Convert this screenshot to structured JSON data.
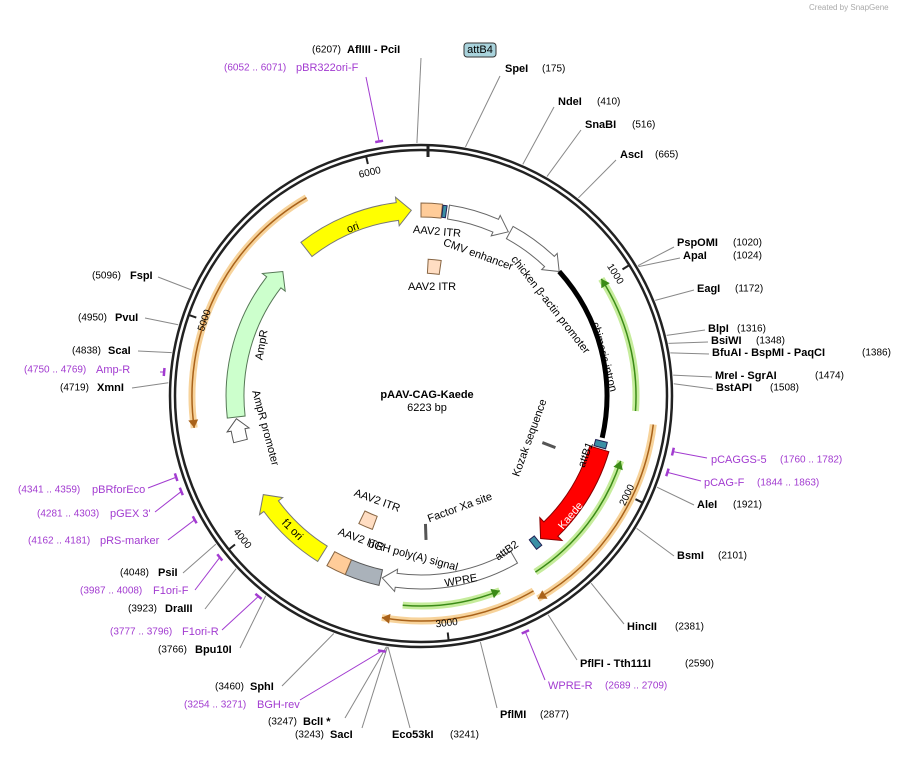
{
  "title": "pAAV-CAG-Kaede",
  "length_label": "6223 bp",
  "length": 6223,
  "watermark": "Created by SnapGene",
  "ring_ticks": [
    1000,
    2000,
    3000,
    4000,
    5000,
    6000
  ],
  "sites": [
    {
      "name": "AflIII - PciI",
      "position": {
        "value": 6207,
        "label": "(6207)"
      }
    },
    {
      "name": "SpeI",
      "position": {
        "value": 175,
        "label": "(175)"
      }
    },
    {
      "name": "NdeI",
      "position": {
        "value": 410,
        "label": "(410)"
      }
    },
    {
      "name": "SnaBI",
      "position": {
        "value": 516,
        "label": "(516)"
      }
    },
    {
      "name": "AscI",
      "position": {
        "value": 665,
        "label": "(665)"
      }
    },
    {
      "name": "PspOMI",
      "position": {
        "value": 1020,
        "label": "(1020)"
      }
    },
    {
      "name": "ApaI",
      "position": {
        "value": 1024,
        "label": "(1024)"
      }
    },
    {
      "name": "EagI",
      "position": {
        "value": 1172,
        "label": "(1172)"
      }
    },
    {
      "name": "BlpI",
      "position": {
        "value": 1316,
        "label": "(1316)"
      }
    },
    {
      "name": "BsiWI",
      "position": {
        "value": 1348,
        "label": "(1348)"
      }
    },
    {
      "name": "BfuAI - BspMI - PaqCI",
      "position": {
        "value": 1386,
        "label": "(1386)"
      }
    },
    {
      "name": "MreI - SgrAI",
      "position": {
        "value": 1474,
        "label": "(1474)"
      }
    },
    {
      "name": "BstAPI",
      "position": {
        "value": 1508,
        "label": "(1508)"
      }
    },
    {
      "name": "AleI",
      "position": {
        "value": 1921,
        "label": "(1921)"
      }
    },
    {
      "name": "BsmI",
      "position": {
        "value": 2101,
        "label": "(2101)"
      }
    },
    {
      "name": "HincII",
      "position": {
        "value": 2381,
        "label": "(2381)"
      }
    },
    {
      "name": "PflFI - Tth111I",
      "position": {
        "value": 2590,
        "label": "(2590)"
      }
    },
    {
      "name": "PflMI",
      "position": {
        "value": 2877,
        "label": "(2877)"
      }
    },
    {
      "name": "Eco53kI",
      "position": {
        "value": 3241,
        "label": "(3241)"
      }
    },
    {
      "name": "SacI",
      "position": {
        "value": 3243,
        "label": "(3243)"
      }
    },
    {
      "name": "BclI *",
      "position": {
        "value": 3247,
        "label": "(3247)"
      }
    },
    {
      "name": "SphI",
      "position": {
        "value": 3460,
        "label": "(3460)"
      }
    },
    {
      "name": "Bpu10I",
      "position": {
        "value": 3766,
        "label": "(3766)"
      }
    },
    {
      "name": "DraIII",
      "position": {
        "value": 3923,
        "label": "(3923)"
      }
    },
    {
      "name": "PsiI",
      "position": {
        "value": 4048,
        "label": "(4048)"
      }
    },
    {
      "name": "XmnI",
      "position": {
        "value": 4719,
        "label": "(4719)"
      }
    },
    {
      "name": "ScaI",
      "position": {
        "value": 4838,
        "label": "(4838)"
      }
    },
    {
      "name": "PvuI",
      "position": {
        "value": 4950,
        "label": "(4950)"
      }
    },
    {
      "name": "FspI",
      "position": {
        "value": 5096,
        "label": "(5096)"
      }
    }
  ],
  "primers": [
    {
      "name": "pBR322ori-F",
      "range": {
        "start": 6052,
        "end": 6071,
        "label": "(6052 .. 6071)"
      }
    },
    {
      "name": "pCAGGS-5",
      "range": {
        "start": 1760,
        "end": 1782,
        "label": "(1760 .. 1782)"
      }
    },
    {
      "name": "pCAG-F",
      "range": {
        "start": 1844,
        "end": 1863,
        "label": "(1844 .. 1863)"
      }
    },
    {
      "name": "WPRE-R",
      "range": {
        "start": 2689,
        "end": 2709,
        "label": "(2689 .. 2709)"
      }
    },
    {
      "name": "BGH-rev",
      "range": {
        "start": 3254,
        "end": 3271,
        "label": "(3254 .. 3271)"
      }
    },
    {
      "name": "F1ori-R",
      "range": {
        "start": 3777,
        "end": 3796,
        "label": "(3777 .. 3796)"
      }
    },
    {
      "name": "F1ori-F",
      "range": {
        "start": 3987,
        "end": 4008,
        "label": "(3987 .. 4008)"
      }
    },
    {
      "name": "pRS-marker",
      "range": {
        "start": 4162,
        "end": 4181,
        "label": "(4162 .. 4181)"
      }
    },
    {
      "name": "pGEX 3'",
      "range": {
        "start": 4281,
        "end": 4303,
        "label": "(4281 .. 4303)"
      }
    },
    {
      "name": "pBRforEco",
      "range": {
        "start": 4341,
        "end": 4359,
        "label": "(4341 .. 4359)"
      }
    },
    {
      "name": "Amp-R",
      "range": {
        "start": 4750,
        "end": 4769,
        "label": "(4750 .. 4769)"
      }
    }
  ],
  "features": [
    "attB4",
    "AAV2 ITR",
    "CMV enhancer",
    "chicken β-actin promoter",
    "chimeric intron",
    "AAV2 ITR",
    "Kozak sequence",
    "attB1",
    "Kaede",
    "attB2",
    "WPRE",
    "bGH poly(A) signal",
    "AAV2 ITR",
    "AAV2 ITR",
    "Factor Xa site",
    "f1 ori",
    "AmpR promoter",
    "AmpR",
    "ori"
  ]
}
